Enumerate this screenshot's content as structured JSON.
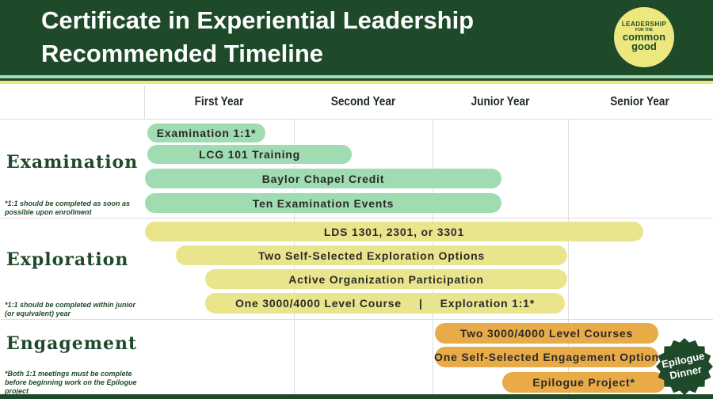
{
  "header": {
    "title_lines": [
      "Certificate in Experiential Leadership",
      "Recommended Timeline"
    ],
    "logo_lines": [
      "LEADERSHIP",
      "FOR THE",
      "common",
      "good"
    ]
  },
  "columns": [
    "First Year",
    "Second Year",
    "Junior Year",
    "Senior Year"
  ],
  "sections": [
    {
      "name": "Examination",
      "note": "*1:1 should be completed as soon as possible upon enrollment",
      "bars": [
        {
          "labels": [
            "Examination 1:1*"
          ]
        },
        {
          "labels": [
            "LCG 101 Training"
          ]
        },
        {
          "labels": [
            "Baylor Chapel Credit"
          ]
        },
        {
          "labels": [
            "Ten Examination Events"
          ]
        }
      ]
    },
    {
      "name": "Exploration",
      "note": "*1:1 should be completed within junior (or equivalent) year",
      "bars": [
        {
          "labels": [
            "LDS 1301, 2301, or 3301"
          ]
        },
        {
          "labels": [
            "Two Self-Selected Exploration Options"
          ]
        },
        {
          "labels": [
            "Active Organization Participation"
          ]
        },
        {
          "labels": [
            "One 3000/4000 Level Course",
            "|",
            "Exploration 1:1*"
          ]
        }
      ]
    },
    {
      "name": "Engagement",
      "note": "*Both 1:1 meetings must be complete before beginning work on the Epilogue project",
      "bars": [
        {
          "labels": [
            "Two 3000/4000 Level Courses"
          ]
        },
        {
          "labels": [
            "One Self-Selected Engagement Option"
          ]
        },
        {
          "labels": [
            "Epilogue Project*"
          ]
        }
      ]
    }
  ],
  "badge": [
    "Epilogue",
    "Dinner"
  ]
}
